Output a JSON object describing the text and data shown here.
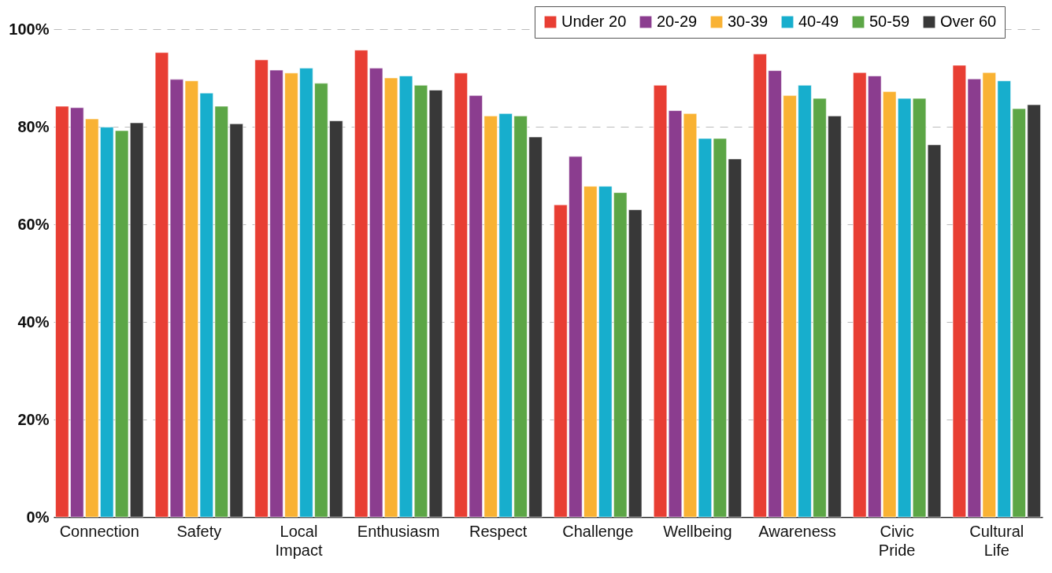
{
  "chart_data": {
    "type": "bar",
    "categories": [
      "Connection",
      "Safety",
      "Local Impact",
      "Enthusiasm",
      "Respect",
      "Challenge",
      "Wellbeing",
      "Awareness",
      "Civic Pride",
      "Cultural Life"
    ],
    "series": [
      {
        "name": "Under 20",
        "color": "#e83e33",
        "values": [
          84.2,
          95.2,
          93.7,
          95.7,
          91.0,
          64.0,
          88.5,
          94.9,
          91.1,
          92.6
        ]
      },
      {
        "name": "20-29",
        "color": "#8b3d8f",
        "values": [
          83.9,
          89.7,
          91.6,
          92.0,
          86.4,
          73.9,
          83.3,
          91.5,
          90.4,
          89.8
        ]
      },
      {
        "name": "30-39",
        "color": "#f9b233",
        "values": [
          81.6,
          89.4,
          91.0,
          90.0,
          82.2,
          67.8,
          82.7,
          86.4,
          87.2,
          91.1
        ]
      },
      {
        "name": "40-49",
        "color": "#17aecd",
        "values": [
          79.9,
          86.9,
          92.0,
          90.4,
          82.7,
          67.8,
          77.6,
          88.5,
          85.8,
          89.4
        ]
      },
      {
        "name": "50-59",
        "color": "#5ca646",
        "values": [
          79.2,
          84.2,
          88.9,
          88.5,
          82.2,
          66.5,
          77.6,
          85.8,
          85.8,
          83.7
        ]
      },
      {
        "name": "Over 60",
        "color": "#383838",
        "values": [
          80.8,
          80.6,
          81.2,
          87.5,
          77.9,
          63.0,
          73.4,
          82.2,
          76.3,
          84.5
        ]
      }
    ],
    "ylim": [
      0,
      100
    ],
    "yticks": [
      {
        "value": 0,
        "label": "0%"
      },
      {
        "value": 20,
        "label": "20%"
      },
      {
        "value": 40,
        "label": "40%"
      },
      {
        "value": 60,
        "label": "60%"
      },
      {
        "value": 80,
        "label": "80%"
      },
      {
        "value": 100,
        "label": "100%"
      }
    ],
    "grid": "y",
    "legend": "top right"
  }
}
